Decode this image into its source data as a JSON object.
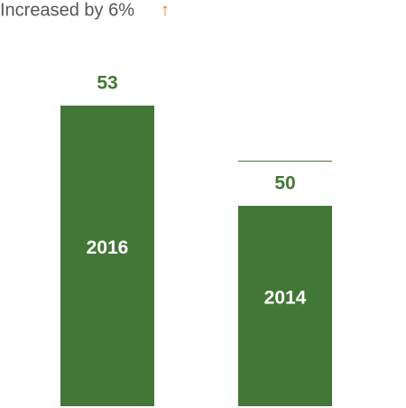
{
  "chart_data": {
    "type": "bar",
    "title": "Increased by 6%",
    "title_arrow": "↑",
    "arrow_color": "#f07f1a",
    "categories": [
      "2016",
      "2014"
    ],
    "values": [
      53,
      50
    ],
    "color": "#437737",
    "ylim": [
      44,
      56
    ]
  }
}
